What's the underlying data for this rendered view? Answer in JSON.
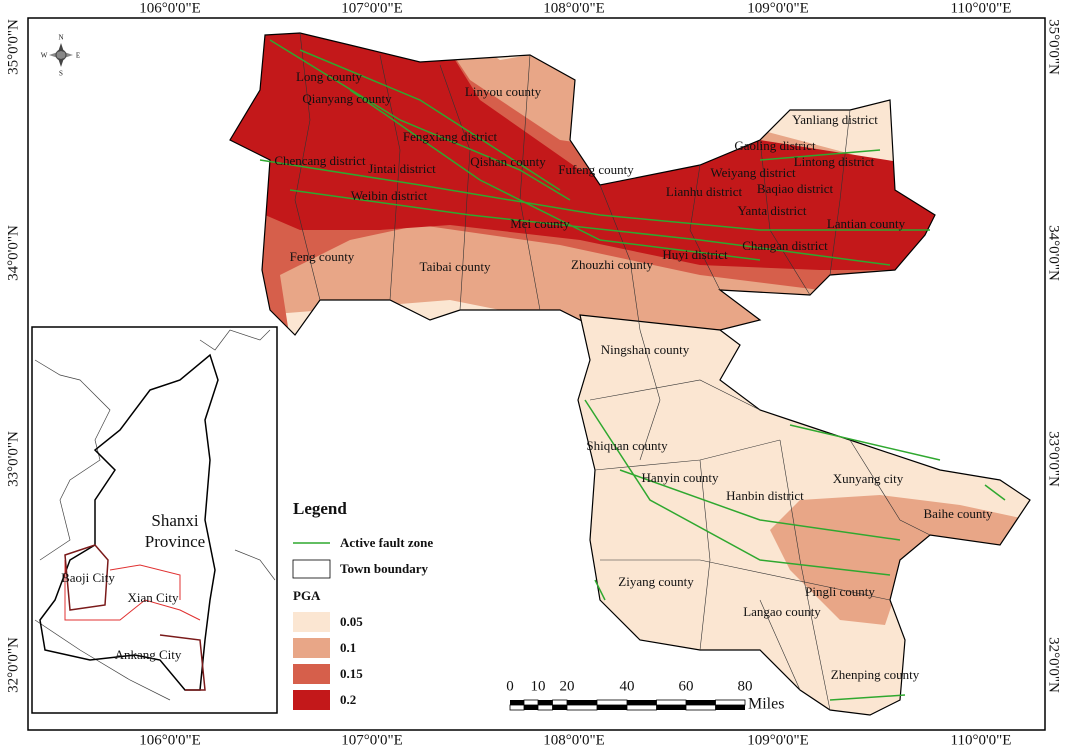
{
  "map": {
    "lon_labels": [
      "106°0'0\"E",
      "107°0'0\"E",
      "108°0'0\"E",
      "109°0'0\"E",
      "110°0'0\"E"
    ],
    "lat_labels": [
      "35°0'0\"N",
      "34°0'0\"N",
      "33°0'0\"N",
      "32°0'0\"N"
    ],
    "compass": [
      "N",
      "S",
      "E",
      "W"
    ],
    "places": [
      "Long county",
      "Qianyang county",
      "Linyou county",
      "Fengxiang district",
      "Chencang district",
      "Jintai district",
      "Qishan county",
      "Fufeng county",
      "Weibin district",
      "Mei county",
      "Feng county",
      "Taibai county",
      "Zhouzhi county",
      "Huyi district",
      "Yanliang district",
      "Gaoling district",
      "Lintong district",
      "Weiyang district",
      "Lianhu district",
      "Baqiao district",
      "Yanta district",
      "Lantian county",
      "Changan district",
      "Ningshan county",
      "Shiquan county",
      "Hanyin county",
      "Hanbin district",
      "Xunyang city",
      "Baihe county",
      "Ziyang county",
      "Pingli county",
      "Langao county",
      "Zhenping county"
    ],
    "inset": {
      "province": [
        "Shanxi",
        "Province"
      ],
      "cities": [
        "Baoji City",
        "Xian City",
        "Ankang City"
      ]
    },
    "legend": {
      "title": "Legend",
      "items": [
        "Active fault zone",
        "Town boundary"
      ],
      "pga_title": "PGA",
      "pga_classes": [
        "0.05",
        "0.1",
        "0.15",
        "0.2"
      ],
      "pga_colors": [
        "#fbe6d2",
        "#e8a687",
        "#d65f4b",
        "#c3181a"
      ]
    },
    "scale_bar": {
      "labels": [
        "0",
        "10",
        "20",
        "40",
        "60",
        "80"
      ],
      "unit": "Miles"
    }
  }
}
